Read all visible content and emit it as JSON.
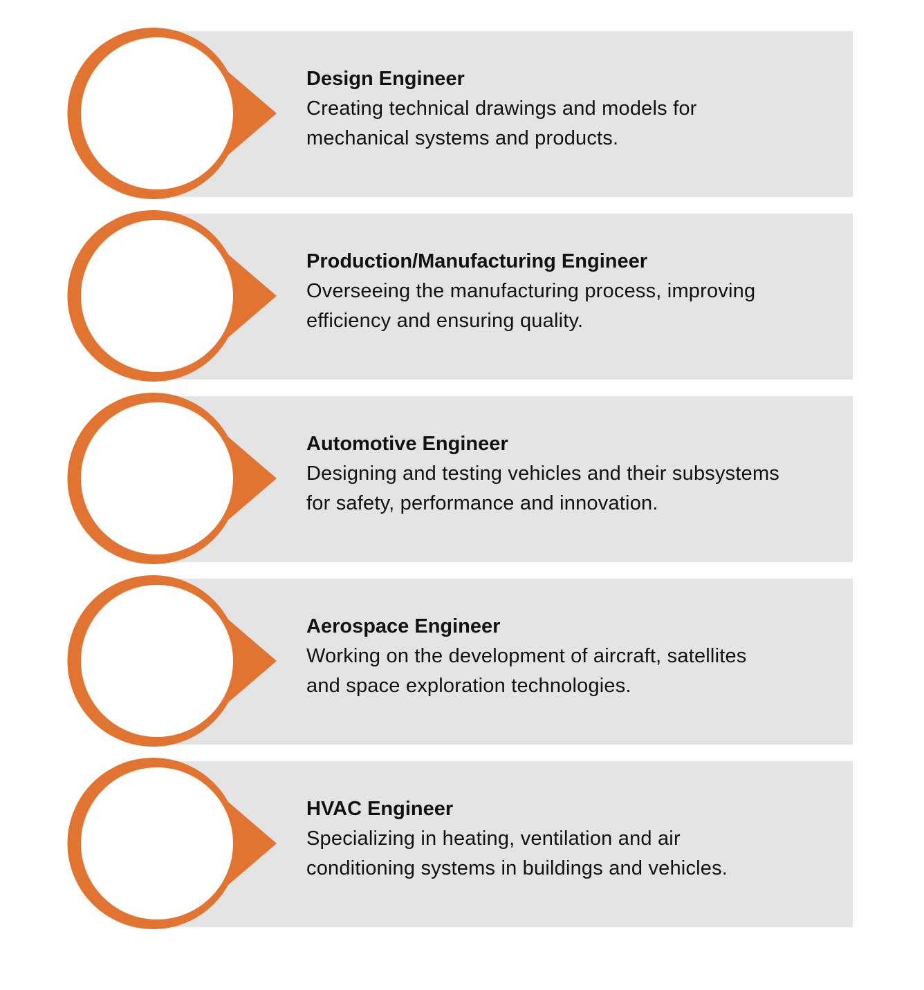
{
  "colors": {
    "accent": "#e07430",
    "panel": "#e4e4e4",
    "circle_fill": "#ffffff",
    "text": "#111111"
  },
  "items": [
    {
      "title": "Design Engineer",
      "description_lines": [
        "Creating technical drawings and models for",
        "mechanical systems and products."
      ]
    },
    {
      "title": "Production/Manufacturing Engineer",
      "description_lines": [
        "Overseeing the manufacturing process, improving",
        "efficiency and ensuring quality."
      ]
    },
    {
      "title": "Automotive Engineer",
      "description_lines": [
        "Designing and testing vehicles and their subsystems",
        "for safety, performance and innovation."
      ]
    },
    {
      "title": "Aerospace Engineer",
      "description_lines": [
        "Working on the development of aircraft, satellites",
        "and space exploration technologies."
      ]
    },
    {
      "title": "HVAC Engineer",
      "description_lines": [
        "Specializing in heating, ventilation and air",
        "conditioning systems in buildings and vehicles."
      ]
    }
  ]
}
